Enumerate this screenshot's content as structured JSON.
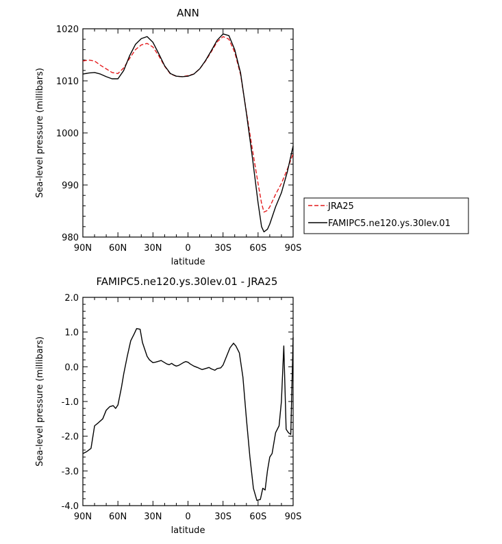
{
  "chart_data": [
    {
      "type": "line",
      "title": "ANN",
      "xlabel": "latitude",
      "ylabel": "Sea-level pressure (millibars)",
      "xlim": [
        90,
        -90
      ],
      "ylim": [
        980,
        1020
      ],
      "xticks": [
        90,
        60,
        30,
        0,
        -30,
        -60,
        -90
      ],
      "xtick_labels": [
        "90N",
        "60N",
        "30N",
        "0",
        "30S",
        "60S",
        "90S"
      ],
      "yticks": [
        980,
        990,
        1000,
        1010,
        1020
      ],
      "ytick_labels": [
        "980",
        "990",
        "1000",
        "1010",
        "1020"
      ],
      "legend": {
        "placement": "outside-right"
      },
      "series": [
        {
          "name": "JRA25",
          "color": "#e41a1c",
          "dash": "dashed",
          "x": [
            90,
            85,
            80,
            75,
            70,
            65,
            60,
            55,
            50,
            45,
            40,
            35,
            30,
            25,
            20,
            15,
            10,
            5,
            0,
            -5,
            -10,
            -15,
            -20,
            -25,
            -30,
            -35,
            -40,
            -45,
            -50,
            -55,
            -60,
            -63,
            -65,
            -68,
            -70,
            -75,
            -80,
            -85,
            -90
          ],
          "values": [
            1013.8,
            1014.0,
            1013.8,
            1013.0,
            1012.3,
            1011.6,
            1011.4,
            1012.5,
            1014.3,
            1016.0,
            1016.9,
            1017.2,
            1016.5,
            1014.8,
            1012.8,
            1011.3,
            1010.9,
            1010.8,
            1011.0,
            1011.3,
            1012.3,
            1013.8,
            1015.6,
            1017.5,
            1018.5,
            1018.0,
            1015.5,
            1011.2,
            1004.0,
            997.0,
            990.3,
            986.5,
            984.8,
            985.1,
            985.8,
            988.2,
            990.3,
            993.0,
            996.0
          ]
        },
        {
          "name": "FAMIPC5.ne120.ys.30lev.01",
          "color": "#000000",
          "dash": "solid",
          "x": [
            90,
            85,
            80,
            75,
            70,
            65,
            60,
            55,
            50,
            45,
            40,
            35,
            30,
            25,
            20,
            15,
            10,
            5,
            0,
            -5,
            -10,
            -15,
            -20,
            -25,
            -30,
            -35,
            -40,
            -45,
            -50,
            -55,
            -60,
            -63,
            -65,
            -68,
            -70,
            -75,
            -80,
            -85,
            -90
          ],
          "values": [
            1011.3,
            1011.5,
            1011.6,
            1011.3,
            1010.8,
            1010.4,
            1010.4,
            1012.0,
            1014.8,
            1017.0,
            1018.1,
            1018.5,
            1017.4,
            1015.2,
            1012.9,
            1011.4,
            1010.9,
            1010.8,
            1010.9,
            1011.3,
            1012.3,
            1013.9,
            1015.8,
            1017.8,
            1019.0,
            1018.7,
            1016.0,
            1011.5,
            1003.8,
            995.5,
            986.6,
            982.0,
            981.0,
            981.5,
            982.5,
            985.8,
            988.5,
            992.5,
            997.5
          ]
        }
      ]
    },
    {
      "type": "line",
      "title": "FAMIPC5.ne120.ys.30lev.01 - JRA25",
      "xlabel": "latitude",
      "ylabel": "Sea-level pressure (millibars)",
      "xlim": [
        90,
        -90
      ],
      "ylim": [
        -4.0,
        2.0
      ],
      "xticks": [
        90,
        60,
        30,
        0,
        -30,
        -60,
        -90
      ],
      "xtick_labels": [
        "90N",
        "60N",
        "30N",
        "0",
        "30S",
        "60S",
        "90S"
      ],
      "yticks": [
        -4.0,
        -3.0,
        -2.0,
        -1.0,
        0.0,
        1.0,
        2.0
      ],
      "ytick_labels": [
        "-4.0",
        "-3.0",
        "-2.0",
        "-1.0",
        "0.0",
        "1.0",
        "2.0"
      ],
      "series": [
        {
          "color": "#000000",
          "x": [
            90,
            87,
            83,
            80,
            77,
            73,
            70,
            67,
            64,
            62,
            60,
            57,
            55,
            52,
            49,
            46,
            44,
            41,
            39,
            37,
            35,
            33,
            30,
            28,
            26,
            23,
            20,
            18,
            16,
            14,
            12,
            10,
            8,
            6,
            4,
            2,
            0,
            -2,
            -5,
            -8,
            -10,
            -12,
            -15,
            -18,
            -20,
            -23,
            -25,
            -28,
            -30,
            -33,
            -36,
            -39,
            -41,
            -44,
            -47,
            -50,
            -53,
            -56,
            -59,
            -62,
            -64,
            -66,
            -68,
            -70,
            -72,
            -75,
            -78,
            -80,
            -82,
            -84,
            -86,
            -88,
            -90
          ],
          "values": [
            -2.5,
            -2.45,
            -2.35,
            -1.7,
            -1.62,
            -1.5,
            -1.25,
            -1.15,
            -1.12,
            -1.2,
            -1.1,
            -0.6,
            -0.2,
            0.3,
            0.75,
            0.95,
            1.1,
            1.08,
            0.7,
            0.5,
            0.3,
            0.2,
            0.12,
            0.13,
            0.15,
            0.18,
            0.12,
            0.08,
            0.06,
            0.1,
            0.05,
            0.02,
            0.04,
            0.08,
            0.12,
            0.15,
            0.13,
            0.08,
            0.02,
            -0.02,
            -0.05,
            -0.08,
            -0.05,
            -0.02,
            -0.06,
            -0.1,
            -0.05,
            -0.03,
            0.05,
            0.3,
            0.55,
            0.68,
            0.6,
            0.4,
            -0.3,
            -1.5,
            -2.6,
            -3.5,
            -3.85,
            -3.82,
            -3.5,
            -3.55,
            -3.0,
            -2.6,
            -2.5,
            -1.9,
            -1.7,
            -1.0,
            0.6,
            -1.8,
            -1.9,
            -1.95,
            0.85
          ]
        }
      ]
    }
  ]
}
